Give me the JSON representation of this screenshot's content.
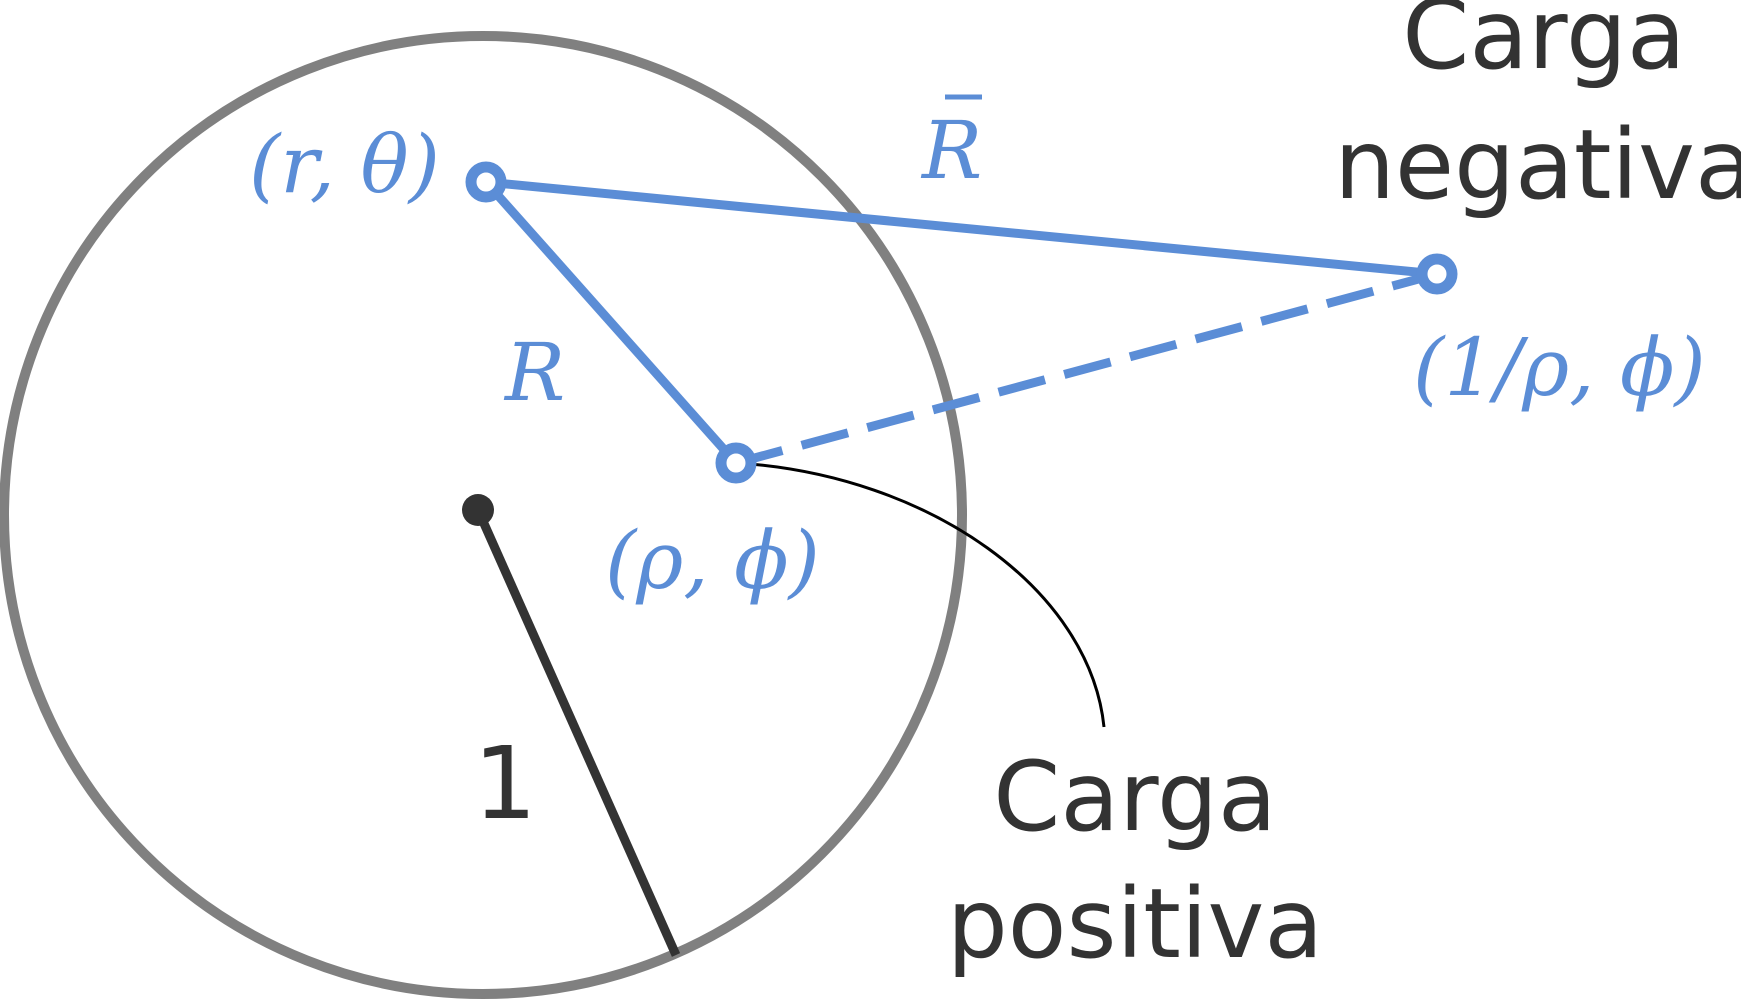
{
  "labels": {
    "negative_charge_line1": "Carga",
    "negative_charge_line2": "negativa",
    "positive_charge_line1": "Carga",
    "positive_charge_line2": "positiva",
    "radius_value": "1",
    "point_r_theta": "(r, θ)",
    "point_rho_phi": "(ρ, ϕ)",
    "point_inverse": "(1/ρ, ϕ)",
    "distance_R": "R",
    "distance_R_bar": "R"
  },
  "colors": {
    "circle": "#808080",
    "dark": "#333333",
    "accent": "#5b8dd6",
    "background": "#ffffff"
  }
}
